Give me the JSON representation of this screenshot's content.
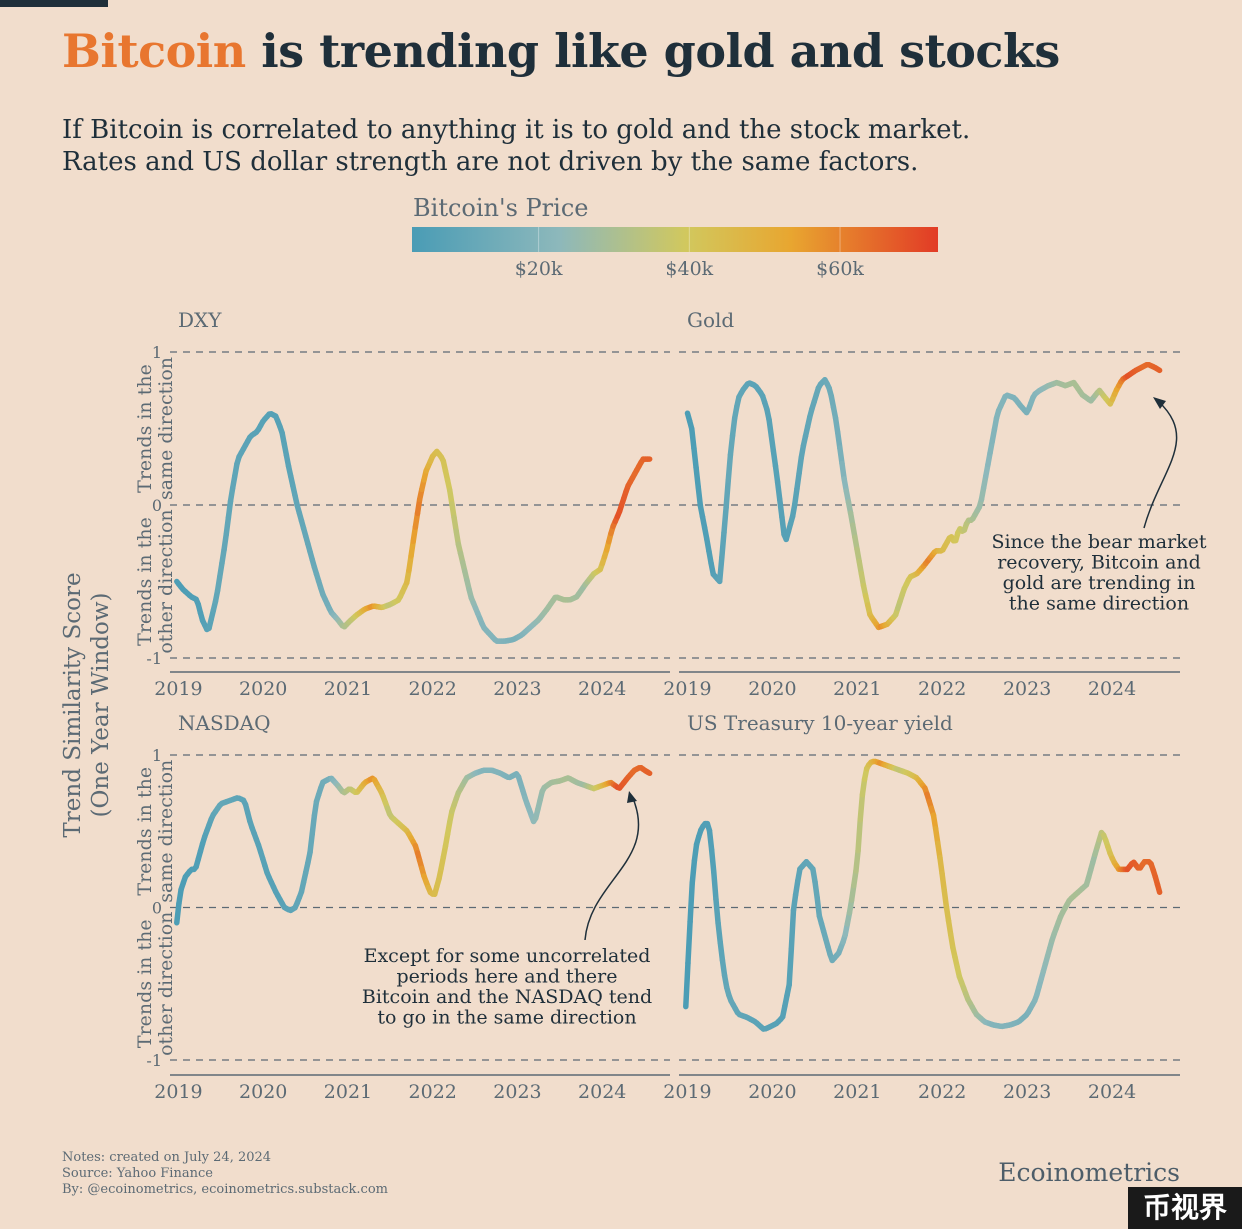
{
  "header": {
    "title_accent": "Bitcoin",
    "title_rest": " is trending like gold and stocks",
    "subtitle_line1": "If Bitcoin is correlated to anything it is to gold and the stock market.",
    "subtitle_line2": "Rates and US dollar strength are not driven by the same factors."
  },
  "colors": {
    "background": "#f1ddcc",
    "accent": "#e8762f",
    "title": "#1f2f3a",
    "text_muted": "#5c6a74",
    "scale": [
      "#4a9cb5",
      "#8db8bb",
      "#d1c85e",
      "#e8a630",
      "#e23b26"
    ]
  },
  "legend": {
    "title": "Bitcoin's Price",
    "ticks": [
      {
        "value": 20000,
        "label": "$20k"
      },
      {
        "value": 40000,
        "label": "$40k"
      },
      {
        "value": 60000,
        "label": "$60k"
      }
    ],
    "min": 3200,
    "max": 73000
  },
  "chart_data": {
    "type": "line",
    "ylabel_line1": "Trend Similarity Score",
    "ylabel_line2": "(One Year Window)",
    "xlim": [
      2018.9,
      2024.8
    ],
    "ylim": [
      -1,
      1
    ],
    "y_ticks": [
      {
        "value": 1,
        "label": "1"
      },
      {
        "value": 0,
        "label": "0"
      },
      {
        "value": -1,
        "label": "-1"
      }
    ],
    "x_ticks": [
      {
        "value": 2019,
        "label": "2019"
      },
      {
        "value": 2020,
        "label": "2020"
      },
      {
        "value": 2021,
        "label": "2021"
      },
      {
        "value": 2022,
        "label": "2022"
      },
      {
        "value": 2023,
        "label": "2023"
      },
      {
        "value": 2024,
        "label": "2024"
      }
    ],
    "band_upper_line1": "Trends in the",
    "band_upper_line2": "same direction",
    "band_lower_line1": "Trends in the",
    "band_lower_line2": "other direction",
    "btc_price": {
      "x": [
        2019.0,
        2019.3,
        2019.5,
        2019.8,
        2020.0,
        2020.2,
        2020.4,
        2020.6,
        2020.8,
        2020.95,
        2021.1,
        2021.3,
        2021.5,
        2021.7,
        2021.85,
        2022.0,
        2022.2,
        2022.4,
        2022.6,
        2022.8,
        2023.0,
        2023.2,
        2023.4,
        2023.6,
        2023.8,
        2024.0,
        2024.2,
        2024.4,
        2024.56
      ],
      "values": [
        3700,
        5500,
        11000,
        8500,
        7200,
        6800,
        9500,
        11700,
        15500,
        29000,
        38000,
        58000,
        35000,
        44000,
        61000,
        46000,
        40000,
        29000,
        20000,
        19500,
        16800,
        23000,
        28000,
        30000,
        27000,
        43000,
        69000,
        64000,
        66000
      ]
    },
    "panels": [
      {
        "title": "DXY",
        "x": [
          2018.98,
          2019.05,
          2019.15,
          2019.22,
          2019.28,
          2019.35,
          2019.45,
          2019.55,
          2019.62,
          2019.7,
          2019.78,
          2019.85,
          2019.93,
          2020.0,
          2020.08,
          2020.15,
          2020.22,
          2020.3,
          2020.4,
          2020.5,
          2020.6,
          2020.7,
          2020.8,
          2020.88,
          2020.95,
          2021.02,
          2021.1,
          2021.2,
          2021.3,
          2021.4,
          2021.5,
          2021.6,
          2021.7,
          2021.78,
          2021.85,
          2021.92,
          2022.0,
          2022.05,
          2022.12,
          2022.2,
          2022.3,
          2022.45,
          2022.6,
          2022.75,
          2022.85,
          2022.95,
          2023.05,
          2023.15,
          2023.25,
          2023.35,
          2023.45,
          2023.55,
          2023.62,
          2023.7,
          2023.8,
          2023.9,
          2023.98,
          2024.05,
          2024.12,
          2024.2,
          2024.3,
          2024.4,
          2024.48,
          2024.56
        ],
        "values": [
          -0.5,
          -0.55,
          -0.6,
          -0.62,
          -0.75,
          -0.83,
          -0.6,
          -0.25,
          0.05,
          0.3,
          0.38,
          0.45,
          0.48,
          0.55,
          0.6,
          0.58,
          0.48,
          0.25,
          0.0,
          -0.2,
          -0.4,
          -0.58,
          -0.7,
          -0.75,
          -0.8,
          -0.76,
          -0.72,
          -0.68,
          -0.66,
          -0.67,
          -0.65,
          -0.62,
          -0.5,
          -0.2,
          0.05,
          0.22,
          0.32,
          0.35,
          0.3,
          0.1,
          -0.25,
          -0.6,
          -0.8,
          -0.89,
          -0.89,
          -0.88,
          -0.85,
          -0.8,
          -0.75,
          -0.68,
          -0.6,
          -0.62,
          -0.62,
          -0.6,
          -0.52,
          -0.45,
          -0.42,
          -0.3,
          -0.15,
          -0.05,
          0.12,
          0.22,
          0.3,
          0.3
        ]
      },
      {
        "title": "Gold",
        "x": [
          2019.0,
          2019.05,
          2019.1,
          2019.15,
          2019.22,
          2019.3,
          2019.38,
          2019.45,
          2019.5,
          2019.55,
          2019.6,
          2019.65,
          2019.72,
          2019.8,
          2019.88,
          2019.95,
          2020.05,
          2020.15,
          2020.25,
          2020.35,
          2020.45,
          2020.55,
          2020.62,
          2020.68,
          2020.75,
          2020.8,
          2020.85,
          2020.92,
          2021.0,
          2021.08,
          2021.15,
          2021.25,
          2021.35,
          2021.45,
          2021.55,
          2021.62,
          2021.7,
          2021.78,
          2021.85,
          2021.92,
          2022.0,
          2022.05,
          2022.1,
          2022.15,
          2022.2,
          2022.25,
          2022.3,
          2022.35,
          2022.4,
          2022.45,
          2022.55,
          2022.65,
          2022.75,
          2022.85,
          2022.92,
          2023.0,
          2023.08,
          2023.15,
          2023.25,
          2023.35,
          2023.45,
          2023.55,
          2023.65,
          2023.75,
          2023.85,
          2023.92,
          2023.98,
          2024.05,
          2024.12,
          2024.2,
          2024.28,
          2024.35,
          2024.42,
          2024.5,
          2024.56
        ],
        "values": [
          0.6,
          0.5,
          0.25,
          0.0,
          -0.2,
          -0.45,
          -0.5,
          -0.05,
          0.3,
          0.55,
          0.7,
          0.75,
          0.8,
          0.78,
          0.72,
          0.6,
          0.2,
          -0.25,
          -0.05,
          0.35,
          0.6,
          0.78,
          0.82,
          0.75,
          0.55,
          0.35,
          0.15,
          -0.05,
          -0.3,
          -0.55,
          -0.72,
          -0.8,
          -0.78,
          -0.72,
          -0.55,
          -0.47,
          -0.45,
          -0.4,
          -0.35,
          -0.3,
          -0.3,
          -0.25,
          -0.2,
          -0.25,
          -0.15,
          -0.18,
          -0.1,
          -0.1,
          -0.05,
          0.0,
          0.3,
          0.6,
          0.72,
          0.7,
          0.65,
          0.6,
          0.72,
          0.75,
          0.78,
          0.8,
          0.78,
          0.8,
          0.72,
          0.68,
          0.75,
          0.7,
          0.66,
          0.75,
          0.82,
          0.85,
          0.88,
          0.9,
          0.92,
          0.9,
          0.88
        ]
      },
      {
        "title": "NASDAQ",
        "x": [
          2018.98,
          2019.02,
          2019.08,
          2019.15,
          2019.2,
          2019.3,
          2019.4,
          2019.5,
          2019.6,
          2019.7,
          2019.78,
          2019.85,
          2019.95,
          2020.05,
          2020.15,
          2020.25,
          2020.32,
          2020.38,
          2020.45,
          2020.55,
          2020.62,
          2020.7,
          2020.8,
          2020.88,
          2020.95,
          2021.02,
          2021.1,
          2021.2,
          2021.3,
          2021.4,
          2021.5,
          2021.6,
          2021.7,
          2021.8,
          2021.9,
          2021.97,
          2022.02,
          2022.08,
          2022.15,
          2022.22,
          2022.3,
          2022.4,
          2022.5,
          2022.6,
          2022.7,
          2022.8,
          2022.9,
          2023.0,
          2023.1,
          2023.2,
          2023.3,
          2023.4,
          2023.5,
          2023.6,
          2023.7,
          2023.8,
          2023.9,
          2024.0,
          2024.1,
          2024.2,
          2024.3,
          2024.38,
          2024.45,
          2024.5,
          2024.56
        ],
        "values": [
          -0.1,
          0.1,
          0.2,
          0.25,
          0.25,
          0.45,
          0.6,
          0.68,
          0.7,
          0.72,
          0.7,
          0.55,
          0.4,
          0.22,
          0.1,
          0.0,
          -0.02,
          0.0,
          0.1,
          0.35,
          0.68,
          0.82,
          0.85,
          0.8,
          0.75,
          0.78,
          0.75,
          0.82,
          0.85,
          0.75,
          0.6,
          0.55,
          0.5,
          0.4,
          0.2,
          0.1,
          0.08,
          0.2,
          0.4,
          0.62,
          0.75,
          0.85,
          0.88,
          0.9,
          0.9,
          0.88,
          0.85,
          0.88,
          0.7,
          0.55,
          0.78,
          0.82,
          0.83,
          0.85,
          0.82,
          0.8,
          0.78,
          0.8,
          0.82,
          0.78,
          0.85,
          0.9,
          0.92,
          0.9,
          0.88
        ]
      },
      {
        "title": "US Treasury 10-year yield",
        "x": [
          2018.98,
          2019.02,
          2019.06,
          2019.1,
          2019.15,
          2019.2,
          2019.25,
          2019.3,
          2019.35,
          2019.4,
          2019.45,
          2019.5,
          2019.6,
          2019.7,
          2019.8,
          2019.9,
          2019.98,
          2020.05,
          2020.12,
          2020.2,
          2020.25,
          2020.32,
          2020.4,
          2020.48,
          2020.52,
          2020.55,
          2020.6,
          2020.65,
          2020.7,
          2020.78,
          2020.85,
          2020.92,
          2021.0,
          2021.05,
          2021.1,
          2021.15,
          2021.2,
          2021.25,
          2021.3,
          2021.4,
          2021.5,
          2021.6,
          2021.7,
          2021.8,
          2021.9,
          2021.98,
          2022.05,
          2022.12,
          2022.2,
          2022.3,
          2022.4,
          2022.5,
          2022.6,
          2022.7,
          2022.8,
          2022.9,
          2023.0,
          2023.1,
          2023.2,
          2023.3,
          2023.4,
          2023.5,
          2023.6,
          2023.7,
          2023.8,
          2023.88,
          2023.92,
          2023.98,
          2024.02,
          2024.08,
          2024.12,
          2024.18,
          2024.25,
          2024.32,
          2024.38,
          2024.45,
          2024.5,
          2024.56
        ],
        "values": [
          -0.65,
          -0.2,
          0.2,
          0.4,
          0.5,
          0.55,
          0.55,
          0.3,
          -0.05,
          -0.3,
          -0.5,
          -0.6,
          -0.7,
          -0.72,
          -0.75,
          -0.8,
          -0.78,
          -0.76,
          -0.72,
          -0.5,
          0.0,
          0.25,
          0.3,
          0.25,
          0.1,
          -0.05,
          -0.15,
          -0.25,
          -0.35,
          -0.3,
          -0.2,
          0.0,
          0.3,
          0.7,
          0.9,
          0.95,
          0.96,
          0.95,
          0.94,
          0.92,
          0.9,
          0.88,
          0.85,
          0.78,
          0.6,
          0.3,
          0.0,
          -0.25,
          -0.45,
          -0.6,
          -0.7,
          -0.75,
          -0.77,
          -0.78,
          -0.77,
          -0.75,
          -0.7,
          -0.6,
          -0.4,
          -0.2,
          -0.05,
          0.05,
          0.1,
          0.15,
          0.35,
          0.5,
          0.45,
          0.35,
          0.3,
          0.25,
          0.25,
          0.25,
          0.3,
          0.25,
          0.3,
          0.3,
          0.22,
          0.1
        ]
      }
    ],
    "annotations": [
      {
        "panel": 1,
        "lines": [
          "Since the bear market",
          "recovery, Bitcoin and",
          "gold are trending in",
          "the same direction"
        ]
      },
      {
        "panel": 2,
        "lines": [
          "Except for some uncorrelated",
          "periods here and there",
          "Bitcoin and the NASDAQ tend",
          "to go in the same direction"
        ]
      }
    ]
  },
  "footer": {
    "notes_line1": "Notes: created on July 24, 2024",
    "notes_line2": "Source: Yahoo Finance",
    "notes_line3": "By: @ecoinometrics, ecoinometrics.substack.com",
    "brand": "Ecoinometrics",
    "watermark": "币视界"
  }
}
